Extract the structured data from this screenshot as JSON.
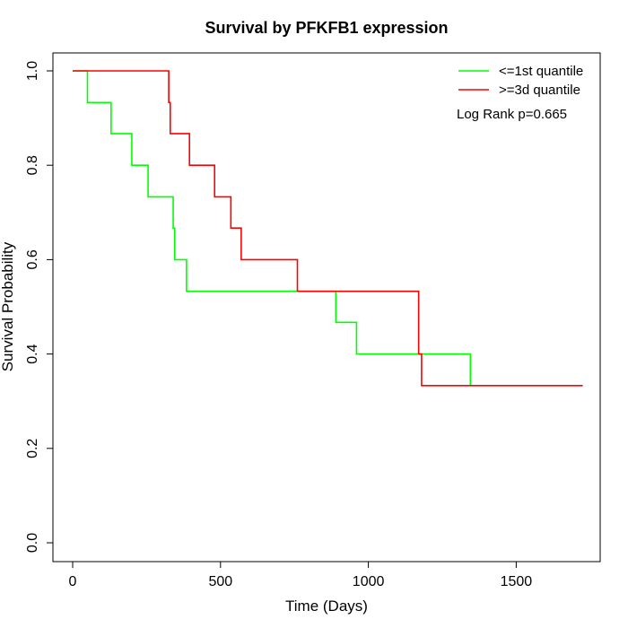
{
  "chart_data": {
    "type": "line",
    "step": true,
    "title": "Survival by PFKFB1 expression",
    "xlabel": "Time (Days)",
    "ylabel": "Survival Probability",
    "xlim": [
      0,
      1780
    ],
    "ylim": [
      0,
      1
    ],
    "xticks": [
      0,
      500,
      1000,
      1500
    ],
    "yticks": [
      0.0,
      0.2,
      0.4,
      0.6,
      0.8,
      1.0
    ],
    "xtick_labels": [
      "0",
      "500",
      "1000",
      "1500"
    ],
    "ytick_labels": [
      "0.0",
      "0.2",
      "0.4",
      "0.6",
      "0.8",
      "1.0"
    ],
    "grid": false,
    "legend_position": "top-right",
    "annotation": "Log Rank p=0.665",
    "series": [
      {
        "name": "<=1st quantile",
        "color": "#00ff00",
        "x": [
          0,
          50,
          130,
          200,
          255,
          340,
          345,
          385,
          890,
          960,
          1345
        ],
        "y": [
          1.0,
          0.933,
          0.867,
          0.8,
          0.733,
          0.667,
          0.6,
          0.533,
          0.467,
          0.4,
          0.333
        ]
      },
      {
        "name": ">=3d quantile",
        "color": "#ff0000",
        "x": [
          0,
          325,
          330,
          395,
          480,
          535,
          570,
          760,
          1170,
          1180,
          1725
        ],
        "y": [
          1.0,
          0.933,
          0.867,
          0.8,
          0.733,
          0.667,
          0.6,
          0.533,
          0.4,
          0.333,
          0.333
        ]
      }
    ]
  }
}
